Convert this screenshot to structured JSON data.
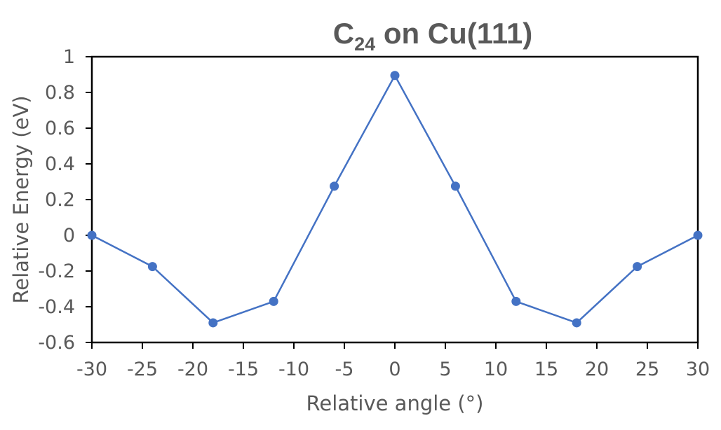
{
  "chart_data": {
    "type": "line",
    "title": {
      "main": "C",
      "subscript": "24",
      "rest": " on Cu(111)"
    },
    "xlabel": "Relative angle (°)",
    "ylabel": "Relative Energy (eV)",
    "xlim": [
      -30,
      30
    ],
    "ylim": [
      -0.6,
      1
    ],
    "x_ticks": [
      -30,
      -25,
      -20,
      -15,
      -10,
      -5,
      0,
      5,
      10,
      15,
      20,
      25,
      30
    ],
    "y_ticks": [
      1,
      0.8,
      0.6,
      0.4,
      0.2,
      0,
      -0.2,
      -0.4,
      -0.6
    ],
    "x_tick_labels": [
      "-30",
      "-25",
      "-20",
      "-15",
      "-10",
      "-5",
      "0",
      "5",
      "10",
      "15",
      "20",
      "25",
      "30"
    ],
    "y_tick_labels": [
      "1",
      "0.8",
      "0.6",
      "0.4",
      "0.2",
      "0",
      "-0.2",
      "-0.4",
      "-0.6"
    ],
    "grid": false,
    "legend": "none",
    "series": [
      {
        "color": "#4472C4",
        "marker": "circle",
        "points": [
          {
            "x": -30,
            "y": 0
          },
          {
            "x": -24,
            "y": -0.175
          },
          {
            "x": -18,
            "y": -0.49
          },
          {
            "x": -12,
            "y": -0.37
          },
          {
            "x": -6,
            "y": 0.275
          },
          {
            "x": 0,
            "y": 0.895
          },
          {
            "x": 6,
            "y": 0.275
          },
          {
            "x": 12,
            "y": -0.37
          },
          {
            "x": 18,
            "y": -0.49
          },
          {
            "x": 24,
            "y": -0.175
          },
          {
            "x": 30,
            "y": 0
          }
        ]
      }
    ]
  }
}
